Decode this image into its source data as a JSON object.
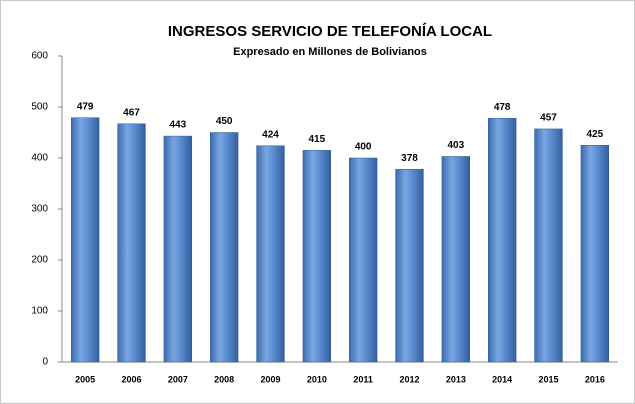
{
  "chart_data": {
    "type": "bar",
    "title": "INGRESOS  SERVICIO DE TELEFONÍA LOCAL",
    "subtitle": "Expresado en Millones de  Bolivianos",
    "categories": [
      "2005",
      "2006",
      "2007",
      "2008",
      "2009",
      "2010",
      "2011",
      "2012",
      "2013",
      "2014",
      "2015",
      "2016"
    ],
    "values": [
      479,
      467,
      443,
      450,
      424,
      415,
      400,
      378,
      403,
      478,
      457,
      425
    ],
    "color": "#4f81bd",
    "ylim": [
      0,
      600
    ],
    "yticks": [
      0,
      100,
      200,
      300,
      400,
      500,
      600
    ],
    "grid": false
  }
}
